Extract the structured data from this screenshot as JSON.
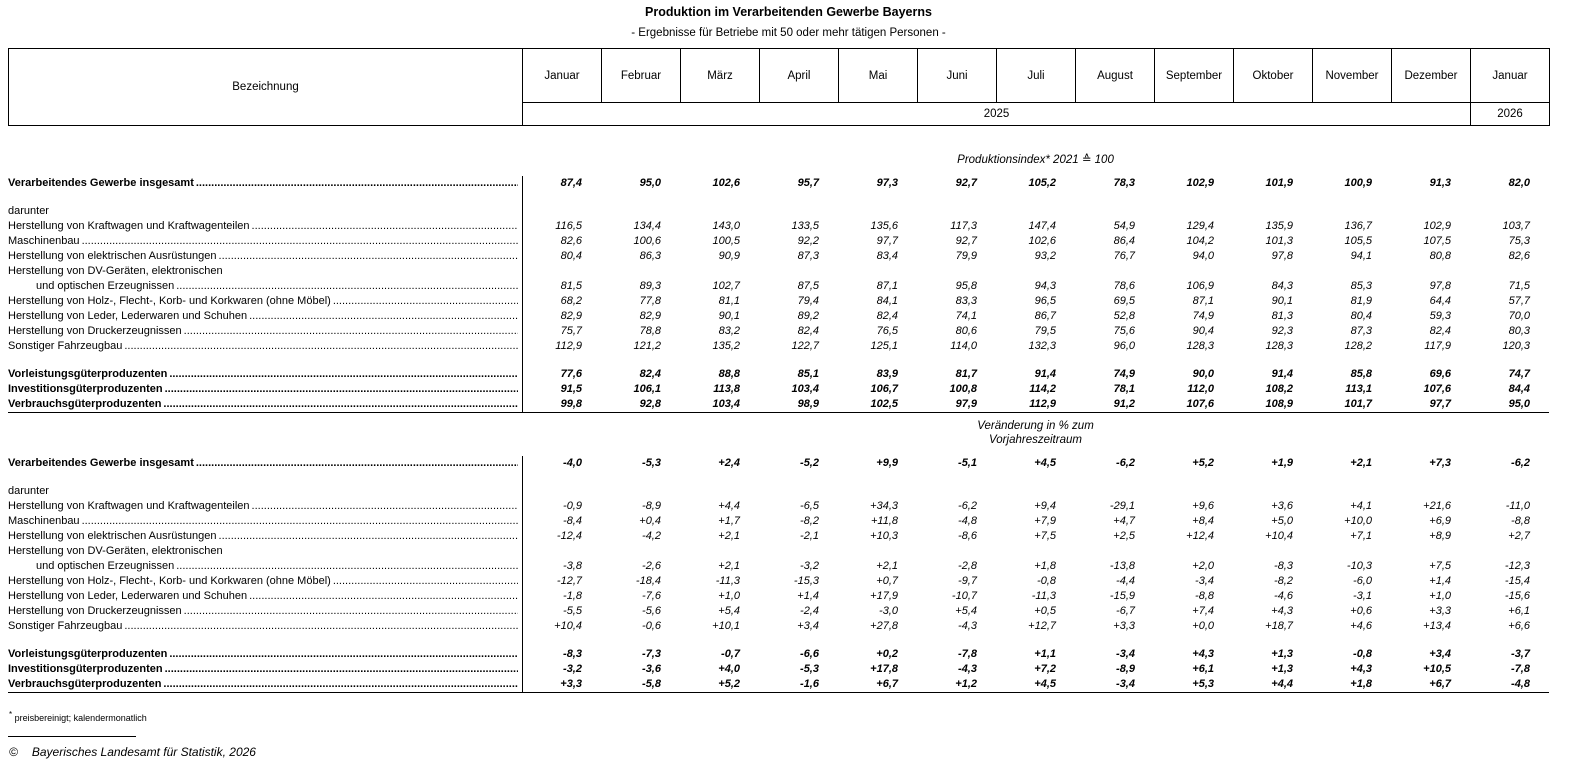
{
  "title": "Produktion im Verarbeitenden Gewerbe Bayerns",
  "subtitle": "- Ergebnisse für Betriebe mit 50 oder mehr tätigen Personen -",
  "table": {
    "label_header": "Bezeichnung",
    "months": [
      "Januar",
      "Februar",
      "März",
      "April",
      "Mai",
      "Juni",
      "Juli",
      "August",
      "September",
      "Oktober",
      "November",
      "Dezember",
      "Januar"
    ],
    "year_2025": "2025",
    "year_2026": "2026",
    "sections": [
      {
        "header": "Produktionsindex* 2021 ≙ 100",
        "rows": [
          {
            "label": "Verarbeitendes Gewerbe insgesamt",
            "bold": true,
            "indent": 0,
            "values": [
              "87,4",
              "95,0",
              "102,6",
              "95,7",
              "97,3",
              "92,7",
              "105,2",
              "78,3",
              "102,9",
              "101,9",
              "100,9",
              "91,3",
              "82,0"
            ]
          },
          {
            "label": "darunter",
            "subheader": true,
            "indent": 1,
            "gap_before": true
          },
          {
            "label": "Herstellung von Kraftwagen und Kraftwagenteilen",
            "indent": 2,
            "values": [
              "116,5",
              "134,4",
              "143,0",
              "133,5",
              "135,6",
              "117,3",
              "147,4",
              "54,9",
              "129,4",
              "135,9",
              "136,7",
              "102,9",
              "103,7"
            ]
          },
          {
            "label": "Maschinenbau",
            "indent": 2,
            "values": [
              "82,6",
              "100,6",
              "100,5",
              "92,2",
              "97,7",
              "92,7",
              "102,6",
              "86,4",
              "104,2",
              "101,3",
              "105,5",
              "107,5",
              "75,3"
            ]
          },
          {
            "label": "Herstellung von elektrischen Ausrüstungen",
            "indent": 2,
            "values": [
              "80,4",
              "86,3",
              "90,9",
              "87,3",
              "83,4",
              "79,9",
              "93,2",
              "76,7",
              "94,0",
              "97,8",
              "94,1",
              "80,8",
              "82,6"
            ]
          },
          {
            "label1": "Herstellung von DV-Geräten, elektronischen",
            "label": "und optischen Erzeugnissen",
            "indent": 2,
            "values": [
              "81,5",
              "89,3",
              "102,7",
              "87,5",
              "87,1",
              "95,8",
              "94,3",
              "78,6",
              "106,9",
              "84,3",
              "85,3",
              "97,8",
              "71,5"
            ]
          },
          {
            "label": "Herstellung von Holz-, Flecht-, Korb- und Korkwaren (ohne Möbel)",
            "indent": 2,
            "values": [
              "68,2",
              "77,8",
              "81,1",
              "79,4",
              "84,1",
              "83,3",
              "96,5",
              "69,5",
              "87,1",
              "90,1",
              "81,9",
              "64,4",
              "57,7"
            ]
          },
          {
            "label": "Herstellung von Leder, Lederwaren und Schuhen",
            "indent": 2,
            "values": [
              "82,9",
              "82,9",
              "90,1",
              "89,2",
              "82,4",
              "74,1",
              "86,7",
              "52,8",
              "74,9",
              "81,3",
              "80,4",
              "59,3",
              "70,0"
            ]
          },
          {
            "label": "Herstellung von Druckerzeugnissen",
            "indent": 2,
            "values": [
              "75,7",
              "78,8",
              "83,2",
              "82,4",
              "76,5",
              "80,6",
              "79,5",
              "75,6",
              "90,4",
              "92,3",
              "87,3",
              "82,4",
              "80,3"
            ]
          },
          {
            "label": "Sonstiger Fahrzeugbau",
            "indent": 2,
            "values": [
              "112,9",
              "121,2",
              "135,2",
              "122,7",
              "125,1",
              "114,0",
              "132,3",
              "96,0",
              "128,3",
              "128,3",
              "128,2",
              "117,9",
              "120,3"
            ]
          },
          {
            "label": "Vorleistungsgüterproduzenten",
            "bold": true,
            "indent": 0,
            "gap_before": true,
            "values": [
              "77,6",
              "82,4",
              "88,8",
              "85,1",
              "83,9",
              "81,7",
              "91,4",
              "74,9",
              "90,0",
              "91,4",
              "85,8",
              "69,6",
              "74,7"
            ]
          },
          {
            "label": "Investitionsgüterproduzenten",
            "bold": true,
            "indent": 0,
            "values": [
              "91,5",
              "106,1",
              "113,8",
              "103,4",
              "106,7",
              "100,8",
              "114,2",
              "78,1",
              "112,0",
              "108,2",
              "113,1",
              "107,6",
              "84,4"
            ]
          },
          {
            "label": "Verbrauchsgüterproduzenten",
            "bold": true,
            "indent": 0,
            "values": [
              "99,8",
              "92,8",
              "103,4",
              "98,9",
              "102,5",
              "97,9",
              "112,9",
              "91,2",
              "107,6",
              "108,9",
              "101,7",
              "97,7",
              "95,0"
            ]
          }
        ]
      },
      {
        "header_line1": "Veränderung in % zum",
        "header_line2": "Vorjahreszeitraum",
        "rows": [
          {
            "label": "Verarbeitendes Gewerbe insgesamt",
            "bold": true,
            "indent": 0,
            "values": [
              "-4,0",
              "-5,3",
              "+2,4",
              "-5,2",
              "+9,9",
              "-5,1",
              "+4,5",
              "-6,2",
              "+5,2",
              "+1,9",
              "+2,1",
              "+7,3",
              "-6,2"
            ]
          },
          {
            "label": "darunter",
            "subheader": true,
            "indent": 1,
            "gap_before": true
          },
          {
            "label": "Herstellung von Kraftwagen und Kraftwagenteilen",
            "indent": 2,
            "values": [
              "-0,9",
              "-8,9",
              "+4,4",
              "-6,5",
              "+34,3",
              "-6,2",
              "+9,4",
              "-29,1",
              "+9,6",
              "+3,6",
              "+4,1",
              "+21,6",
              "-11,0"
            ]
          },
          {
            "label": "Maschinenbau",
            "indent": 2,
            "values": [
              "-8,4",
              "+0,4",
              "+1,7",
              "-8,2",
              "+11,8",
              "-4,8",
              "+7,9",
              "+4,7",
              "+8,4",
              "+5,0",
              "+10,0",
              "+6,9",
              "-8,8"
            ]
          },
          {
            "label": "Herstellung von elektrischen Ausrüstungen",
            "indent": 2,
            "values": [
              "-12,4",
              "-4,2",
              "+2,1",
              "-2,1",
              "+10,3",
              "-8,6",
              "+7,5",
              "+2,5",
              "+12,4",
              "+10,4",
              "+7,1",
              "+8,9",
              "+2,7"
            ]
          },
          {
            "label1": "Herstellung von DV-Geräten, elektronischen",
            "label": "und optischen Erzeugnissen",
            "indent": 2,
            "values": [
              "-3,8",
              "-2,6",
              "+2,1",
              "-3,2",
              "+2,1",
              "-2,8",
              "+1,8",
              "-13,8",
              "+2,0",
              "-8,3",
              "-10,3",
              "+7,5",
              "-12,3"
            ]
          },
          {
            "label": "Herstellung von Holz-, Flecht-, Korb- und Korkwaren (ohne Möbel)",
            "indent": 2,
            "values": [
              "-12,7",
              "-18,4",
              "-11,3",
              "-15,3",
              "+0,7",
              "-9,7",
              "-0,8",
              "-4,4",
              "-3,4",
              "-8,2",
              "-6,0",
              "+1,4",
              "-15,4"
            ]
          },
          {
            "label": "Herstellung von Leder, Lederwaren und Schuhen",
            "indent": 2,
            "values": [
              "-1,8",
              "-7,6",
              "+1,0",
              "+1,4",
              "+17,9",
              "-10,7",
              "-11,3",
              "-15,9",
              "-8,8",
              "-4,6",
              "-3,1",
              "+1,0",
              "-15,6"
            ]
          },
          {
            "label": "Herstellung von Druckerzeugnissen",
            "indent": 2,
            "values": [
              "-5,5",
              "-5,6",
              "+5,4",
              "-2,4",
              "-3,0",
              "+5,4",
              "+0,5",
              "-6,7",
              "+7,4",
              "+4,3",
              "+0,6",
              "+3,3",
              "+6,1"
            ]
          },
          {
            "label": "Sonstiger Fahrzeugbau",
            "indent": 2,
            "values": [
              "+10,4",
              "-0,6",
              "+10,1",
              "+3,4",
              "+27,8",
              "-4,3",
              "+12,7",
              "+3,3",
              "+0,0",
              "+18,7",
              "+4,6",
              "+13,4",
              "+6,6"
            ]
          },
          {
            "label": "Vorleistungsgüterproduzenten",
            "bold": true,
            "indent": 0,
            "gap_before": true,
            "values": [
              "-8,3",
              "-7,3",
              "-0,7",
              "-6,6",
              "+0,2",
              "-7,8",
              "+1,1",
              "-3,4",
              "+4,3",
              "+1,3",
              "-0,8",
              "+3,4",
              "-3,7"
            ]
          },
          {
            "label": "Investitionsgüterproduzenten",
            "bold": true,
            "indent": 0,
            "values": [
              "-3,2",
              "-3,6",
              "+4,0",
              "-5,3",
              "+17,8",
              "-4,3",
              "+7,2",
              "-8,9",
              "+6,1",
              "+1,3",
              "+4,3",
              "+10,5",
              "-7,8"
            ]
          },
          {
            "label": "Verbrauchsgüterproduzenten",
            "bold": true,
            "indent": 0,
            "values": [
              "+3,3",
              "-5,8",
              "+5,2",
              "-1,6",
              "+6,7",
              "+1,2",
              "+4,5",
              "-3,4",
              "+5,3",
              "+4,4",
              "+1,8",
              "+6,7",
              "-4,8"
            ]
          }
        ]
      }
    ]
  },
  "footnote": {
    "marker": "*",
    "text": "preisbereinigt; kalendermonatlich"
  },
  "copyright": {
    "symbol": "©",
    "text": "Bayerisches Landesamt für Statistik, 2026"
  }
}
